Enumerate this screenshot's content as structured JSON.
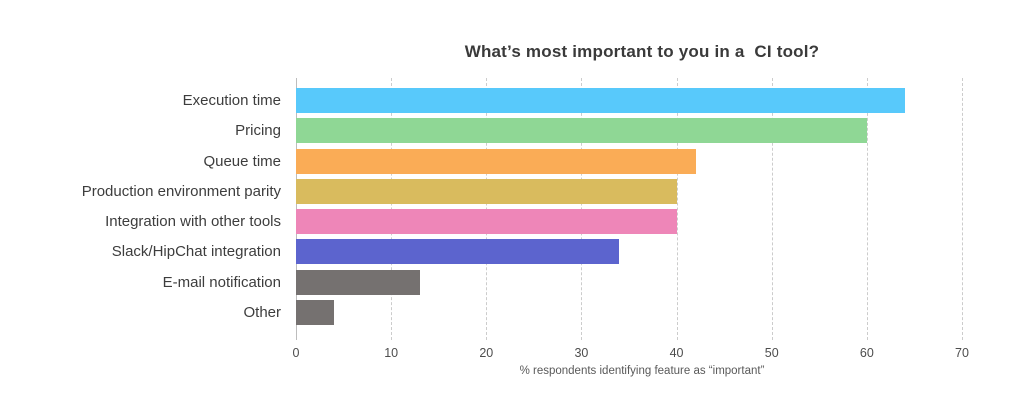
{
  "page": {
    "background": "#ffffff"
  },
  "chart_data": {
    "type": "bar",
    "orientation": "horizontal",
    "title": "What’s most important to you in a  CI tool?",
    "xlabel": "% respondents identifying feature as “important”",
    "categories": [
      "Execution time",
      "Pricing",
      "Queue time",
      "Production environment parity",
      "Integration with other tools",
      "Slack/HipChat integration",
      "E-mail notification",
      "Other"
    ],
    "values": [
      64,
      60,
      42,
      40,
      40,
      34,
      13,
      4
    ],
    "colors": [
      "#58C9FB",
      "#8FD795",
      "#FAAC56",
      "#D9BB5E",
      "#EE86B8",
      "#5C64CE",
      "#757170",
      "#757170"
    ],
    "xlim": [
      0,
      70
    ],
    "xticks": [
      0,
      10,
      20,
      30,
      40,
      50,
      60,
      70
    ],
    "grid": "vertical-dashed",
    "legend": "none",
    "grid_color": "#cccccc",
    "zero_line_color": "#bdbdbd",
    "title_color": "#3a3a3a",
    "category_label_color": "#3d3d3d",
    "tick_label_color": "#4d4d4d",
    "xlabel_color": "#595959"
  }
}
